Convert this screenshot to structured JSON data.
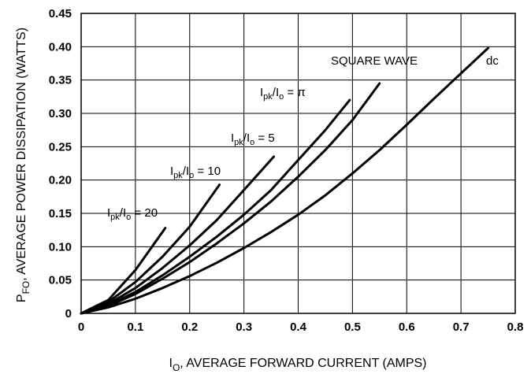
{
  "chart_data": {
    "type": "line",
    "title": "",
    "xlabel": {
      "main": "I",
      "sub": "O",
      "rest": ", AVERAGE FORWARD CURRENT (AMPS)"
    },
    "ylabel": {
      "main": "P",
      "sub": "FO",
      "rest": ", AVERAGE POWER DISSIPATION (WATTS)"
    },
    "xlim": [
      0,
      0.8
    ],
    "ylim": [
      0,
      0.45
    ],
    "grid": true,
    "legend": "none",
    "xticks": [
      "0",
      "0.1",
      "0.2",
      "0.3",
      "0.4",
      "0.5",
      "0.6",
      "0.7",
      "0.8"
    ],
    "yticks": [
      "0",
      "0.05",
      "0.10",
      "0.15",
      "0.20",
      "0.25",
      "0.30",
      "0.35",
      "0.40",
      "0.45"
    ],
    "series": [
      {
        "name": "Ipk/Io = 20",
        "label": {
          "pre": "I",
          "sub1": "pk",
          "mid": "/I",
          "sub2": "o",
          "post": " = 20"
        },
        "points": [
          [
            0,
            0
          ],
          [
            0.05,
            0.02
          ],
          [
            0.1,
            0.065
          ],
          [
            0.155,
            0.128
          ]
        ]
      },
      {
        "name": "Ipk/Io = 10",
        "label": {
          "pre": "I",
          "sub1": "pk",
          "mid": "/I",
          "sub2": "o",
          "post": " = 10"
        },
        "points": [
          [
            0,
            0
          ],
          [
            0.05,
            0.017
          ],
          [
            0.1,
            0.047
          ],
          [
            0.15,
            0.085
          ],
          [
            0.2,
            0.13
          ],
          [
            0.255,
            0.193
          ]
        ]
      },
      {
        "name": "Ipk/Io = 5",
        "label": {
          "pre": "I",
          "sub1": "pk",
          "mid": "/I",
          "sub2": "o",
          "post": " = 5"
        },
        "points": [
          [
            0,
            0
          ],
          [
            0.05,
            0.014
          ],
          [
            0.1,
            0.038
          ],
          [
            0.15,
            0.068
          ],
          [
            0.2,
            0.102
          ],
          [
            0.25,
            0.14
          ],
          [
            0.3,
            0.185
          ],
          [
            0.355,
            0.235
          ]
        ]
      },
      {
        "name": "Ipk/Io = π",
        "label": {
          "pre": "I",
          "sub1": "pk",
          "mid": "/I",
          "sub2": "o",
          "post": " = π"
        },
        "points": [
          [
            0,
            0
          ],
          [
            0.05,
            0.012
          ],
          [
            0.1,
            0.032
          ],
          [
            0.15,
            0.057
          ],
          [
            0.2,
            0.085
          ],
          [
            0.25,
            0.115
          ],
          [
            0.3,
            0.148
          ],
          [
            0.35,
            0.185
          ],
          [
            0.4,
            0.23
          ],
          [
            0.45,
            0.275
          ],
          [
            0.495,
            0.32
          ]
        ]
      },
      {
        "name": "SQUARE WAVE",
        "label": {
          "pre": "SQUARE WAVE",
          "sub1": "",
          "mid": "",
          "sub2": "",
          "post": ""
        },
        "points": [
          [
            0,
            0
          ],
          [
            0.05,
            0.011
          ],
          [
            0.1,
            0.029
          ],
          [
            0.15,
            0.052
          ],
          [
            0.2,
            0.077
          ],
          [
            0.25,
            0.105
          ],
          [
            0.3,
            0.135
          ],
          [
            0.35,
            0.168
          ],
          [
            0.4,
            0.205
          ],
          [
            0.45,
            0.245
          ],
          [
            0.5,
            0.29
          ],
          [
            0.55,
            0.345
          ]
        ]
      },
      {
        "name": "dc",
        "label": {
          "pre": "dc",
          "sub1": "",
          "mid": "",
          "sub2": "",
          "post": ""
        },
        "points": [
          [
            0,
            0
          ],
          [
            0.05,
            0.009
          ],
          [
            0.1,
            0.022
          ],
          [
            0.15,
            0.038
          ],
          [
            0.2,
            0.056
          ],
          [
            0.25,
            0.076
          ],
          [
            0.3,
            0.098
          ],
          [
            0.35,
            0.122
          ],
          [
            0.4,
            0.148
          ],
          [
            0.45,
            0.177
          ],
          [
            0.5,
            0.21
          ],
          [
            0.55,
            0.245
          ],
          [
            0.6,
            0.283
          ],
          [
            0.65,
            0.322
          ],
          [
            0.7,
            0.36
          ],
          [
            0.75,
            0.398
          ]
        ]
      }
    ]
  }
}
